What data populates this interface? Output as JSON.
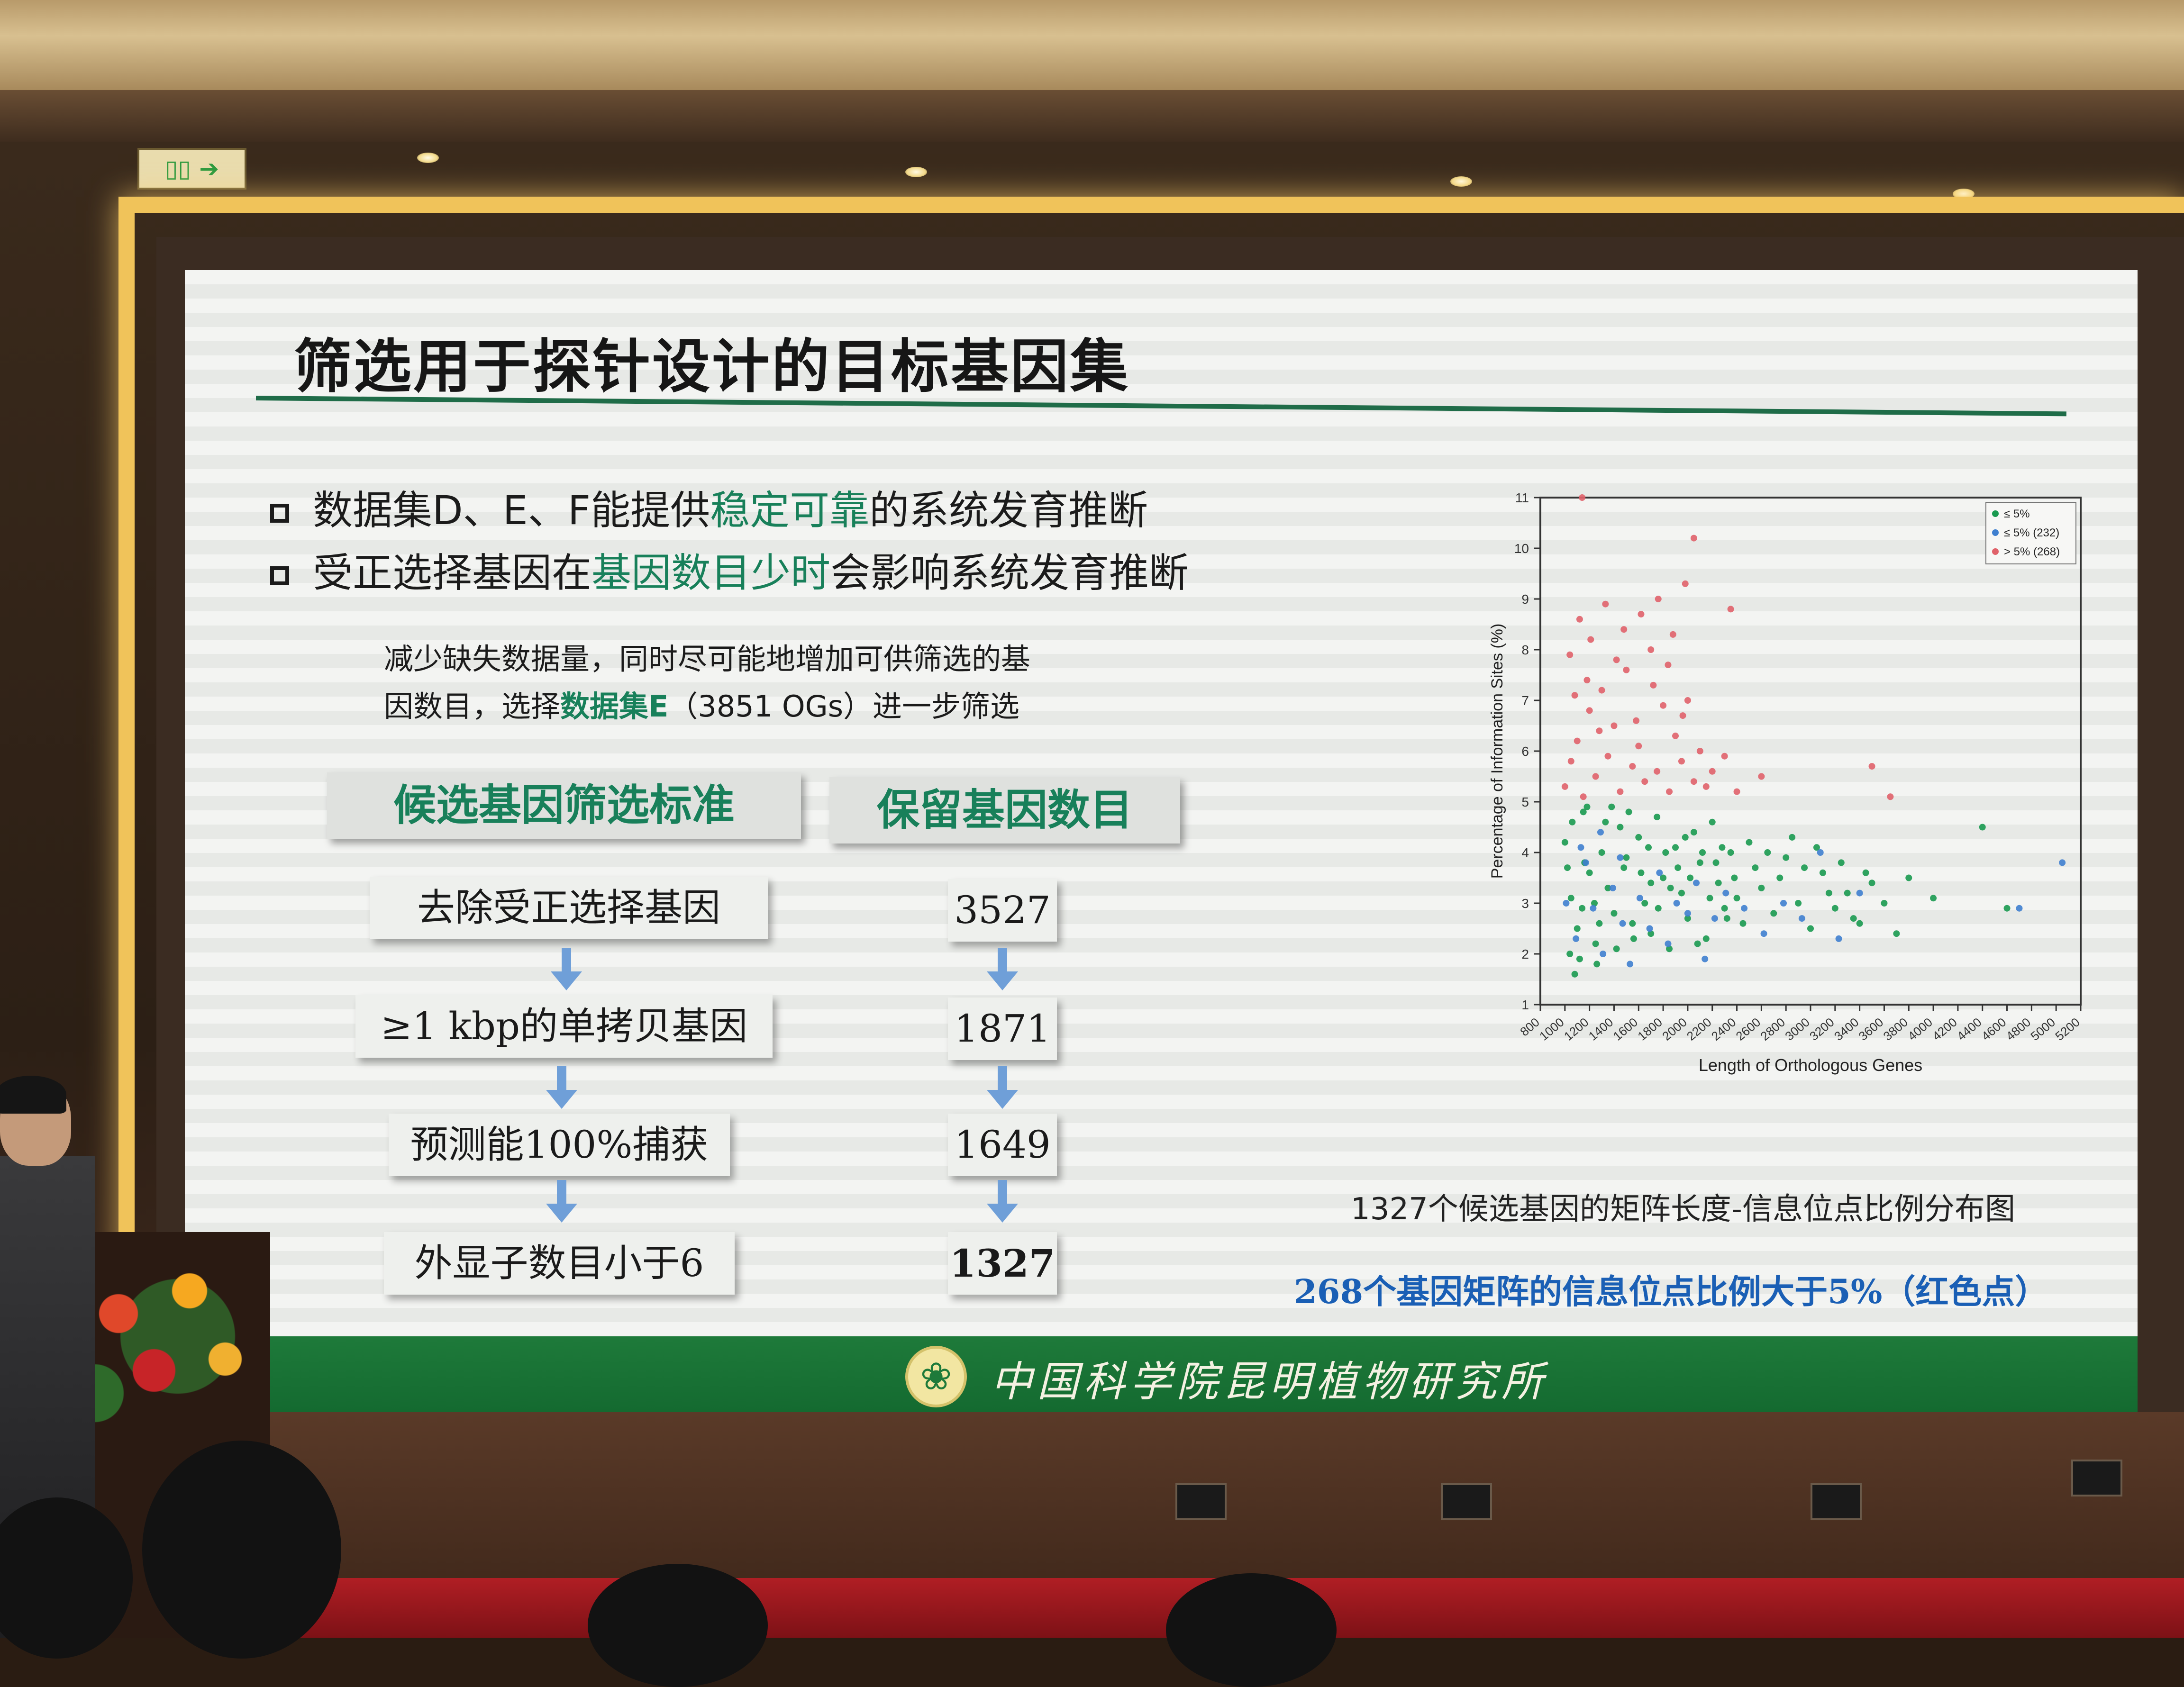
{
  "room": {
    "exit_sign": "▯▯ ➔"
  },
  "slide": {
    "title": "筛选用于探针设计的目标基因集",
    "bullets": [
      {
        "pre": "数据集D、E、F能提供",
        "highlight": "稳定可靠",
        "post": "的系统发育推断"
      },
      {
        "pre": "受正选择基因在",
        "highlight": "基因数目少时",
        "post": "会影响系统发育推断"
      }
    ],
    "note": {
      "line1": "减少缺失数据量，同时尽可能地增加可供筛选的基",
      "line2_pre": "因数目，选择",
      "line2_strong": "数据集E",
      "line2_post": "（3851 OGs）进一步筛选"
    },
    "table": {
      "header_criteria": "候选基因筛选标准",
      "header_count": "保留基因数目",
      "rows": [
        {
          "criterion": "去除受正选择基因",
          "count": "3527"
        },
        {
          "criterion": "≥1 kbp的单拷贝基因",
          "count": "1871"
        },
        {
          "criterion": "预测能100%捕获",
          "count": "1649"
        },
        {
          "criterion": "外显子数目小于6",
          "count": "1327"
        }
      ]
    },
    "caption": "1327个候选基因的矩阵长度-信息位点比例分布图",
    "caption2": "268个基因矩阵的信息位点比例大于5%（红色点）",
    "institute": "中国科学院昆明植物研究所"
  },
  "chart_data": {
    "type": "scatter",
    "title": "",
    "xlabel": "Length of Orthologous Genes",
    "ylabel": "Percentage of Information Sites (%)",
    "xlim": [
      800,
      5200
    ],
    "ylim": [
      1,
      11
    ],
    "xticks": [
      "800",
      "1000",
      "1200",
      "1400",
      "1600",
      "1800",
      "2000",
      "2200",
      "2400",
      "2600",
      "2800",
      "3000",
      "3200",
      "3400",
      "3600",
      "3800",
      "4000",
      "4200",
      "4400",
      "4600",
      "4800",
      "5000",
      "5200"
    ],
    "yticks": [
      "1",
      "2",
      "3",
      "4",
      "5",
      "6",
      "7",
      "8",
      "9",
      "10",
      "11"
    ],
    "legend": [
      {
        "label": "≤ 5%",
        "color": "#1a9a50"
      },
      {
        "label": "≤ 5% (232)",
        "color": "#3f7fcf"
      },
      {
        "label": "> 5% (268)",
        "color": "#e0626a"
      }
    ],
    "legend_position": "top-right",
    "series": [
      {
        "name": "≤ 5%",
        "color": "#1a9a50",
        "points": [
          [
            1000,
            4.2
          ],
          [
            1050,
            3.1
          ],
          [
            1100,
            2.5
          ],
          [
            1150,
            4.8
          ],
          [
            1200,
            3.6
          ],
          [
            1250,
            2.2
          ],
          [
            1300,
            4.0
          ],
          [
            1350,
            3.3
          ],
          [
            1400,
            2.8
          ],
          [
            1450,
            4.5
          ],
          [
            1500,
            3.9
          ],
          [
            1550,
            2.6
          ],
          [
            1600,
            4.3
          ],
          [
            1650,
            3.0
          ],
          [
            1700,
            2.4
          ],
          [
            1750,
            4.7
          ],
          [
            1800,
            3.5
          ],
          [
            1850,
            2.1
          ],
          [
            1900,
            4.1
          ],
          [
            1950,
            3.2
          ],
          [
            2000,
            2.7
          ],
          [
            2050,
            4.4
          ],
          [
            2100,
            3.8
          ],
          [
            2150,
            2.3
          ],
          [
            2200,
            4.6
          ],
          [
            2250,
            3.4
          ],
          [
            2300,
            2.9
          ],
          [
            2350,
            4.0
          ],
          [
            2400,
            3.1
          ],
          [
            2450,
            2.6
          ],
          [
            2500,
            4.2
          ],
          [
            2600,
            3.3
          ],
          [
            2700,
            2.8
          ],
          [
            2800,
            3.9
          ],
          [
            2900,
            3.0
          ],
          [
            3000,
            2.5
          ],
          [
            3100,
            3.6
          ],
          [
            3200,
            2.9
          ],
          [
            3300,
            3.2
          ],
          [
            3400,
            2.6
          ],
          [
            3500,
            3.4
          ],
          [
            3600,
            3.0
          ],
          [
            3700,
            2.4
          ],
          [
            3800,
            3.5
          ],
          [
            4000,
            3.1
          ],
          [
            4400,
            4.5
          ],
          [
            4600,
            2.9
          ],
          [
            1080,
            1.6
          ],
          [
            1120,
            1.9
          ],
          [
            1260,
            1.8
          ],
          [
            1020,
            3.7
          ],
          [
            1180,
            4.9
          ],
          [
            1330,
            4.6
          ],
          [
            1480,
            3.7
          ],
          [
            1620,
            3.6
          ],
          [
            1760,
            2.9
          ],
          [
            1920,
            3.7
          ],
          [
            2080,
            2.2
          ],
          [
            2230,
            3.8
          ],
          [
            2380,
            3.5
          ],
          [
            1040,
            2.0
          ],
          [
            1140,
            2.9
          ],
          [
            1240,
            3.0
          ],
          [
            1380,
            4.9
          ],
          [
            1520,
            4.8
          ],
          [
            1680,
            4.1
          ],
          [
            1820,
            4.0
          ],
          [
            1980,
            4.3
          ],
          [
            2120,
            4.0
          ],
          [
            2280,
            4.1
          ],
          [
            1060,
            4.6
          ],
          [
            1160,
            3.8
          ],
          [
            1280,
            2.6
          ],
          [
            1420,
            2.1
          ],
          [
            1560,
            2.3
          ],
          [
            1700,
            3.4
          ],
          [
            1860,
            3.3
          ],
          [
            2020,
            3.5
          ],
          [
            2180,
            3.1
          ],
          [
            2320,
            2.7
          ],
          [
            2550,
            3.7
          ],
          [
            2650,
            4.0
          ],
          [
            2750,
            3.5
          ],
          [
            2850,
            4.3
          ],
          [
            2950,
            3.7
          ],
          [
            3050,
            4.1
          ],
          [
            3150,
            3.2
          ],
          [
            3250,
            3.8
          ],
          [
            3350,
            2.7
          ],
          [
            3450,
            3.6
          ]
        ]
      },
      {
        "name": "≤ 5% (232)",
        "color": "#3f7fcf",
        "points": [
          [
            1010,
            3.0
          ],
          [
            1090,
            2.3
          ],
          [
            1170,
            3.8
          ],
          [
            1230,
            2.9
          ],
          [
            1310,
            2.0
          ],
          [
            1390,
            3.3
          ],
          [
            1470,
            2.6
          ],
          [
            1530,
            1.8
          ],
          [
            1610,
            3.1
          ],
          [
            1690,
            2.5
          ],
          [
            1770,
            3.6
          ],
          [
            1840,
            2.2
          ],
          [
            1910,
            3.0
          ],
          [
            2000,
            2.8
          ],
          [
            2070,
            3.4
          ],
          [
            2140,
            1.9
          ],
          [
            2220,
            2.7
          ],
          [
            2310,
            3.2
          ],
          [
            2460,
            2.9
          ],
          [
            2620,
            2.4
          ],
          [
            2780,
            3.0
          ],
          [
            2930,
            2.7
          ],
          [
            3080,
            4.0
          ],
          [
            3230,
            2.3
          ],
          [
            3400,
            3.2
          ],
          [
            4700,
            2.9
          ],
          [
            5050,
            3.8
          ],
          [
            1130,
            4.1
          ],
          [
            1290,
            4.4
          ],
          [
            1450,
            3.9
          ]
        ]
      },
      {
        "name": "> 5% (268)",
        "color": "#e0626a",
        "points": [
          [
            1000,
            5.3
          ],
          [
            1050,
            5.8
          ],
          [
            1100,
            6.2
          ],
          [
            1150,
            5.1
          ],
          [
            1200,
            6.8
          ],
          [
            1250,
            5.5
          ],
          [
            1300,
            7.2
          ],
          [
            1350,
            5.9
          ],
          [
            1400,
            6.5
          ],
          [
            1450,
            5.2
          ],
          [
            1500,
            7.6
          ],
          [
            1550,
            5.7
          ],
          [
            1600,
            6.1
          ],
          [
            1650,
            5.4
          ],
          [
            1700,
            8.0
          ],
          [
            1750,
            5.6
          ],
          [
            1800,
            6.9
          ],
          [
            1850,
            5.2
          ],
          [
            1900,
            6.3
          ],
          [
            1950,
            5.8
          ],
          [
            2000,
            7.0
          ],
          [
            2050,
            5.4
          ],
          [
            2100,
            6.0
          ],
          [
            2150,
            5.3
          ],
          [
            2200,
            5.6
          ],
          [
            2300,
            5.9
          ],
          [
            2400,
            5.2
          ],
          [
            2600,
            5.5
          ],
          [
            3500,
            5.7
          ],
          [
            3650,
            5.1
          ],
          [
            1040,
            7.9
          ],
          [
            1120,
            8.6
          ],
          [
            1210,
            8.2
          ],
          [
            1330,
            8.9
          ],
          [
            1480,
            8.4
          ],
          [
            1620,
            8.7
          ],
          [
            1760,
            9.0
          ],
          [
            1880,
            8.3
          ],
          [
            1980,
            9.3
          ],
          [
            2350,
            8.8
          ],
          [
            1140,
            11.0
          ],
          [
            2050,
            10.2
          ],
          [
            1080,
            7.1
          ],
          [
            1180,
            7.4
          ],
          [
            1280,
            6.4
          ],
          [
            1420,
            7.8
          ],
          [
            1580,
            6.6
          ],
          [
            1720,
            7.3
          ],
          [
            1840,
            7.7
          ],
          [
            1960,
            6.7
          ]
        ]
      }
    ]
  }
}
